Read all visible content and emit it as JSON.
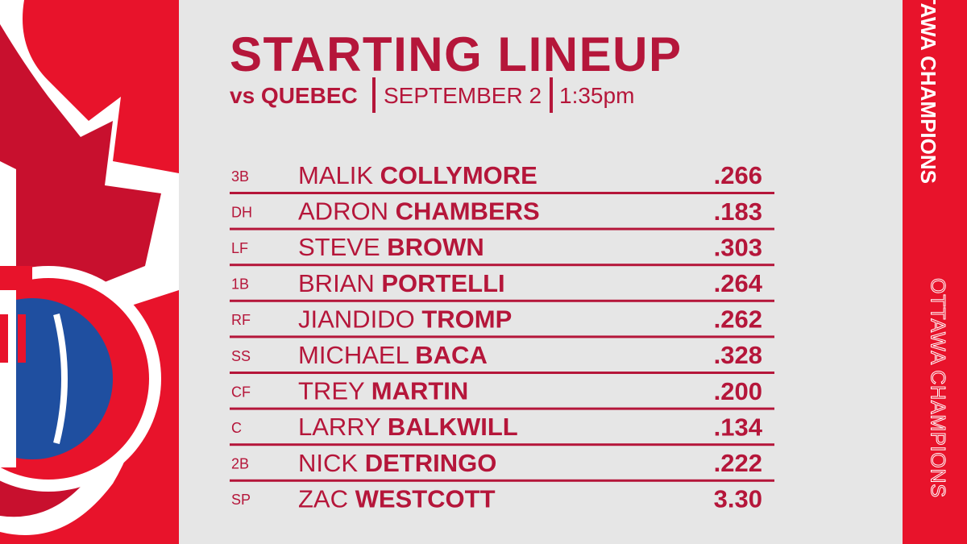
{
  "header": {
    "title": "STARTING LINEUP",
    "opponent": "vs QUEBEC",
    "date": "SEPTEMBER 2",
    "time": "1:35pm"
  },
  "lineup": [
    {
      "position": "3B",
      "first": "MALIK",
      "last": "COLLYMORE",
      "stat": ".266"
    },
    {
      "position": "DH",
      "first": "ADRON",
      "last": "CHAMBERS",
      "stat": ".183"
    },
    {
      "position": "LF",
      "first": "STEVE",
      "last": "BROWN",
      "stat": ".303"
    },
    {
      "position": "1B",
      "first": "BRIAN",
      "last": "PORTELLI",
      "stat": ".264"
    },
    {
      "position": "RF",
      "first": "JIANDIDO",
      "last": "TROMP",
      "stat": ".262"
    },
    {
      "position": "SS",
      "first": "MICHAEL",
      "last": "BACA",
      "stat": ".328"
    },
    {
      "position": "CF",
      "first": "TREY",
      "last": "MARTIN",
      "stat": ".200"
    },
    {
      "position": "C",
      "first": "LARRY",
      "last": "BALKWILL",
      "stat": ".134"
    },
    {
      "position": "2B",
      "first": "NICK",
      "last": "DETRINGO",
      "stat": ".222"
    },
    {
      "position": "SP",
      "first": "ZAC",
      "last": "WESTCOTT",
      "stat": "3.30"
    }
  ],
  "side": {
    "top": "OTTAWA CHAMPIONS",
    "bottom": "OTTAWA CHAMPIONS"
  }
}
